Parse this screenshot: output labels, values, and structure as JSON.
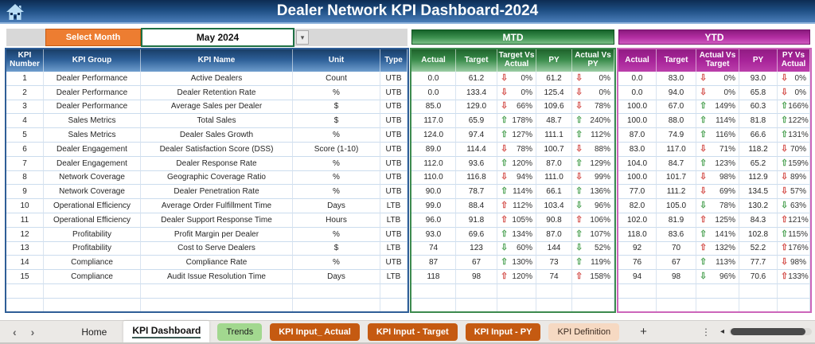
{
  "title": "Dealer Network KPI Dashboard-2024",
  "icons": {
    "up_arrow": "⇧",
    "down_arrow": "⇩",
    "dropdown": "▾",
    "back": "‹",
    "forward": "›",
    "more": "⋮",
    "scroll_left": "◂"
  },
  "colors": {
    "accent_orange": "#ED7D31",
    "mtd_green": "#3a8c4b",
    "ytd_magenta": "#a8259a",
    "header_blue": "#2d5f98",
    "good": "#4da254",
    "bad": "#d4514d"
  },
  "controls": {
    "select_month_label": "Select Month",
    "month_value": "May 2024"
  },
  "sections": {
    "mtd": "MTD",
    "ytd": "YTD"
  },
  "table": {
    "main_headers": [
      "KPI Number",
      "KPI Group",
      "KPI Name",
      "Unit",
      "Type"
    ],
    "mtd_headers": [
      "Actual",
      "Target",
      "Target Vs Actual",
      "PY",
      "Actual Vs PY"
    ],
    "ytd_headers": [
      "Actual",
      "Target",
      "Actual Vs Target",
      "PY",
      "PY Vs Actual"
    ],
    "rows": [
      {
        "num": "1",
        "group": "Dealer Performance",
        "name": "Active Dealers",
        "unit": "Count",
        "type": "UTB",
        "mtd": {
          "actual": "0.0",
          "target": "61.2",
          "tva": {
            "arrow": "down",
            "tone": "bad",
            "pct": "0%"
          },
          "py": "61.2",
          "avp": {
            "arrow": "down",
            "tone": "bad",
            "pct": "0%"
          }
        },
        "ytd": {
          "actual": "0.0",
          "target": "83.0",
          "avt": {
            "arrow": "down",
            "tone": "bad",
            "pct": "0%"
          },
          "py": "93.0",
          "pva": {
            "arrow": "down",
            "tone": "bad",
            "pct": "0%"
          }
        }
      },
      {
        "num": "2",
        "group": "Dealer Performance",
        "name": "Dealer Retention Rate",
        "unit": "%",
        "type": "UTB",
        "mtd": {
          "actual": "0.0",
          "target": "133.4",
          "tva": {
            "arrow": "down",
            "tone": "bad",
            "pct": "0%"
          },
          "py": "125.4",
          "avp": {
            "arrow": "down",
            "tone": "bad",
            "pct": "0%"
          }
        },
        "ytd": {
          "actual": "0.0",
          "target": "94.0",
          "avt": {
            "arrow": "down",
            "tone": "bad",
            "pct": "0%"
          },
          "py": "65.8",
          "pva": {
            "arrow": "down",
            "tone": "bad",
            "pct": "0%"
          }
        }
      },
      {
        "num": "3",
        "group": "Dealer Performance",
        "name": "Average Sales per Dealer",
        "unit": "$",
        "type": "UTB",
        "mtd": {
          "actual": "85.0",
          "target": "129.0",
          "tva": {
            "arrow": "down",
            "tone": "bad",
            "pct": "66%"
          },
          "py": "109.6",
          "avp": {
            "arrow": "down",
            "tone": "bad",
            "pct": "78%"
          }
        },
        "ytd": {
          "actual": "100.0",
          "target": "67.0",
          "avt": {
            "arrow": "up",
            "tone": "good",
            "pct": "149%"
          },
          "py": "60.3",
          "pva": {
            "arrow": "up",
            "tone": "good",
            "pct": "166%"
          }
        }
      },
      {
        "num": "4",
        "group": "Sales Metrics",
        "name": "Total Sales",
        "unit": "$",
        "type": "UTB",
        "mtd": {
          "actual": "117.0",
          "target": "65.9",
          "tva": {
            "arrow": "up",
            "tone": "good",
            "pct": "178%"
          },
          "py": "48.7",
          "avp": {
            "arrow": "up",
            "tone": "good",
            "pct": "240%"
          }
        },
        "ytd": {
          "actual": "100.0",
          "target": "88.0",
          "avt": {
            "arrow": "up",
            "tone": "good",
            "pct": "114%"
          },
          "py": "81.8",
          "pva": {
            "arrow": "up",
            "tone": "good",
            "pct": "122%"
          }
        }
      },
      {
        "num": "5",
        "group": "Sales Metrics",
        "name": "Dealer Sales Growth",
        "unit": "%",
        "type": "UTB",
        "mtd": {
          "actual": "124.0",
          "target": "97.4",
          "tva": {
            "arrow": "up",
            "tone": "good",
            "pct": "127%"
          },
          "py": "111.1",
          "avp": {
            "arrow": "up",
            "tone": "good",
            "pct": "112%"
          }
        },
        "ytd": {
          "actual": "87.0",
          "target": "74.9",
          "avt": {
            "arrow": "up",
            "tone": "good",
            "pct": "116%"
          },
          "py": "66.6",
          "pva": {
            "arrow": "up",
            "tone": "good",
            "pct": "131%"
          }
        }
      },
      {
        "num": "6",
        "group": "Dealer Engagement",
        "name": "Dealer Satisfaction Score (DSS)",
        "unit": "Score (1-10)",
        "type": "UTB",
        "mtd": {
          "actual": "89.0",
          "target": "114.4",
          "tva": {
            "arrow": "down",
            "tone": "bad",
            "pct": "78%"
          },
          "py": "100.7",
          "avp": {
            "arrow": "down",
            "tone": "bad",
            "pct": "88%"
          }
        },
        "ytd": {
          "actual": "83.0",
          "target": "117.0",
          "avt": {
            "arrow": "down",
            "tone": "bad",
            "pct": "71%"
          },
          "py": "118.2",
          "pva": {
            "arrow": "down",
            "tone": "bad",
            "pct": "70%"
          }
        }
      },
      {
        "num": "7",
        "group": "Dealer Engagement",
        "name": "Dealer Response Rate",
        "unit": "%",
        "type": "UTB",
        "mtd": {
          "actual": "112.0",
          "target": "93.6",
          "tva": {
            "arrow": "up",
            "tone": "good",
            "pct": "120%"
          },
          "py": "87.0",
          "avp": {
            "arrow": "up",
            "tone": "good",
            "pct": "129%"
          }
        },
        "ytd": {
          "actual": "104.0",
          "target": "84.7",
          "avt": {
            "arrow": "up",
            "tone": "good",
            "pct": "123%"
          },
          "py": "65.2",
          "pva": {
            "arrow": "up",
            "tone": "good",
            "pct": "159%"
          }
        }
      },
      {
        "num": "8",
        "group": "Network Coverage",
        "name": "Geographic Coverage Ratio",
        "unit": "%",
        "type": "UTB",
        "mtd": {
          "actual": "110.0",
          "target": "116.8",
          "tva": {
            "arrow": "down",
            "tone": "bad",
            "pct": "94%"
          },
          "py": "111.0",
          "avp": {
            "arrow": "down",
            "tone": "bad",
            "pct": "99%"
          }
        },
        "ytd": {
          "actual": "100.0",
          "target": "101.7",
          "avt": {
            "arrow": "down",
            "tone": "bad",
            "pct": "98%"
          },
          "py": "112.9",
          "pva": {
            "arrow": "down",
            "tone": "bad",
            "pct": "89%"
          }
        }
      },
      {
        "num": "9",
        "group": "Network Coverage",
        "name": "Dealer Penetration Rate",
        "unit": "%",
        "type": "UTB",
        "mtd": {
          "actual": "90.0",
          "target": "78.7",
          "tva": {
            "arrow": "up",
            "tone": "good",
            "pct": "114%"
          },
          "py": "66.1",
          "avp": {
            "arrow": "up",
            "tone": "good",
            "pct": "136%"
          }
        },
        "ytd": {
          "actual": "77.0",
          "target": "111.2",
          "avt": {
            "arrow": "down",
            "tone": "bad",
            "pct": "69%"
          },
          "py": "134.5",
          "pva": {
            "arrow": "down",
            "tone": "bad",
            "pct": "57%"
          }
        }
      },
      {
        "num": "10",
        "group": "Operational Efficiency",
        "name": "Average Order Fulfillment Time",
        "unit": "Days",
        "type": "LTB",
        "mtd": {
          "actual": "99.0",
          "target": "88.4",
          "tva": {
            "arrow": "up",
            "tone": "bad",
            "pct": "112%"
          },
          "py": "103.4",
          "avp": {
            "arrow": "down",
            "tone": "good",
            "pct": "96%"
          }
        },
        "ytd": {
          "actual": "82.0",
          "target": "105.0",
          "avt": {
            "arrow": "down",
            "tone": "good",
            "pct": "78%"
          },
          "py": "130.2",
          "pva": {
            "arrow": "down",
            "tone": "good",
            "pct": "63%"
          }
        }
      },
      {
        "num": "11",
        "group": "Operational Efficiency",
        "name": "Dealer Support Response Time",
        "unit": "Hours",
        "type": "LTB",
        "mtd": {
          "actual": "96.0",
          "target": "91.8",
          "tva": {
            "arrow": "up",
            "tone": "bad",
            "pct": "105%"
          },
          "py": "90.8",
          "avp": {
            "arrow": "up",
            "tone": "bad",
            "pct": "106%"
          }
        },
        "ytd": {
          "actual": "102.0",
          "target": "81.9",
          "avt": {
            "arrow": "up",
            "tone": "bad",
            "pct": "125%"
          },
          "py": "84.3",
          "pva": {
            "arrow": "up",
            "tone": "bad",
            "pct": "121%"
          }
        }
      },
      {
        "num": "12",
        "group": "Profitability",
        "name": "Profit Margin per Dealer",
        "unit": "%",
        "type": "UTB",
        "mtd": {
          "actual": "93.0",
          "target": "69.6",
          "tva": {
            "arrow": "up",
            "tone": "good",
            "pct": "134%"
          },
          "py": "87.0",
          "avp": {
            "arrow": "up",
            "tone": "good",
            "pct": "107%"
          }
        },
        "ytd": {
          "actual": "118.0",
          "target": "83.6",
          "avt": {
            "arrow": "up",
            "tone": "good",
            "pct": "141%"
          },
          "py": "102.8",
          "pva": {
            "arrow": "up",
            "tone": "good",
            "pct": "115%"
          }
        }
      },
      {
        "num": "13",
        "group": "Profitability",
        "name": "Cost to Serve Dealers",
        "unit": "$",
        "type": "LTB",
        "mtd": {
          "actual": "74",
          "target": "123",
          "tva": {
            "arrow": "down",
            "tone": "good",
            "pct": "60%"
          },
          "py": "144",
          "avp": {
            "arrow": "down",
            "tone": "good",
            "pct": "52%"
          }
        },
        "ytd": {
          "actual": "92",
          "target": "70",
          "avt": {
            "arrow": "up",
            "tone": "bad",
            "pct": "132%"
          },
          "py": "52.2",
          "pva": {
            "arrow": "up",
            "tone": "bad",
            "pct": "176%"
          }
        }
      },
      {
        "num": "14",
        "group": "Compliance",
        "name": "Compliance Rate",
        "unit": "%",
        "type": "UTB",
        "mtd": {
          "actual": "87",
          "target": "67",
          "tva": {
            "arrow": "up",
            "tone": "good",
            "pct": "130%"
          },
          "py": "73",
          "avp": {
            "arrow": "up",
            "tone": "good",
            "pct": "119%"
          }
        },
        "ytd": {
          "actual": "76",
          "target": "67",
          "avt": {
            "arrow": "up",
            "tone": "good",
            "pct": "113%"
          },
          "py": "77.7",
          "pva": {
            "arrow": "down",
            "tone": "bad",
            "pct": "98%"
          }
        }
      },
      {
        "num": "15",
        "group": "Compliance",
        "name": "Audit Issue Resolution Time",
        "unit": "Days",
        "type": "LTB",
        "mtd": {
          "actual": "118",
          "target": "98",
          "tva": {
            "arrow": "up",
            "tone": "bad",
            "pct": "120%"
          },
          "py": "74",
          "avp": {
            "arrow": "up",
            "tone": "bad",
            "pct": "158%"
          }
        },
        "ytd": {
          "actual": "94",
          "target": "98",
          "avt": {
            "arrow": "down",
            "tone": "good",
            "pct": "96%"
          },
          "py": "70.6",
          "pva": {
            "arrow": "up",
            "tone": "bad",
            "pct": "133%"
          }
        }
      }
    ]
  },
  "tabs": {
    "items": [
      {
        "label": "Home",
        "style": "plain"
      },
      {
        "label": "KPI Dashboard",
        "style": "active"
      },
      {
        "label": "Trends",
        "style": "green"
      },
      {
        "label": "KPI Input_ Actual",
        "style": "orange"
      },
      {
        "label": "KPI Input - Target",
        "style": "orange"
      },
      {
        "label": "KPI Input - PY",
        "style": "orange"
      },
      {
        "label": "KPI Definition",
        "style": "peach"
      }
    ],
    "add_label": "+"
  }
}
